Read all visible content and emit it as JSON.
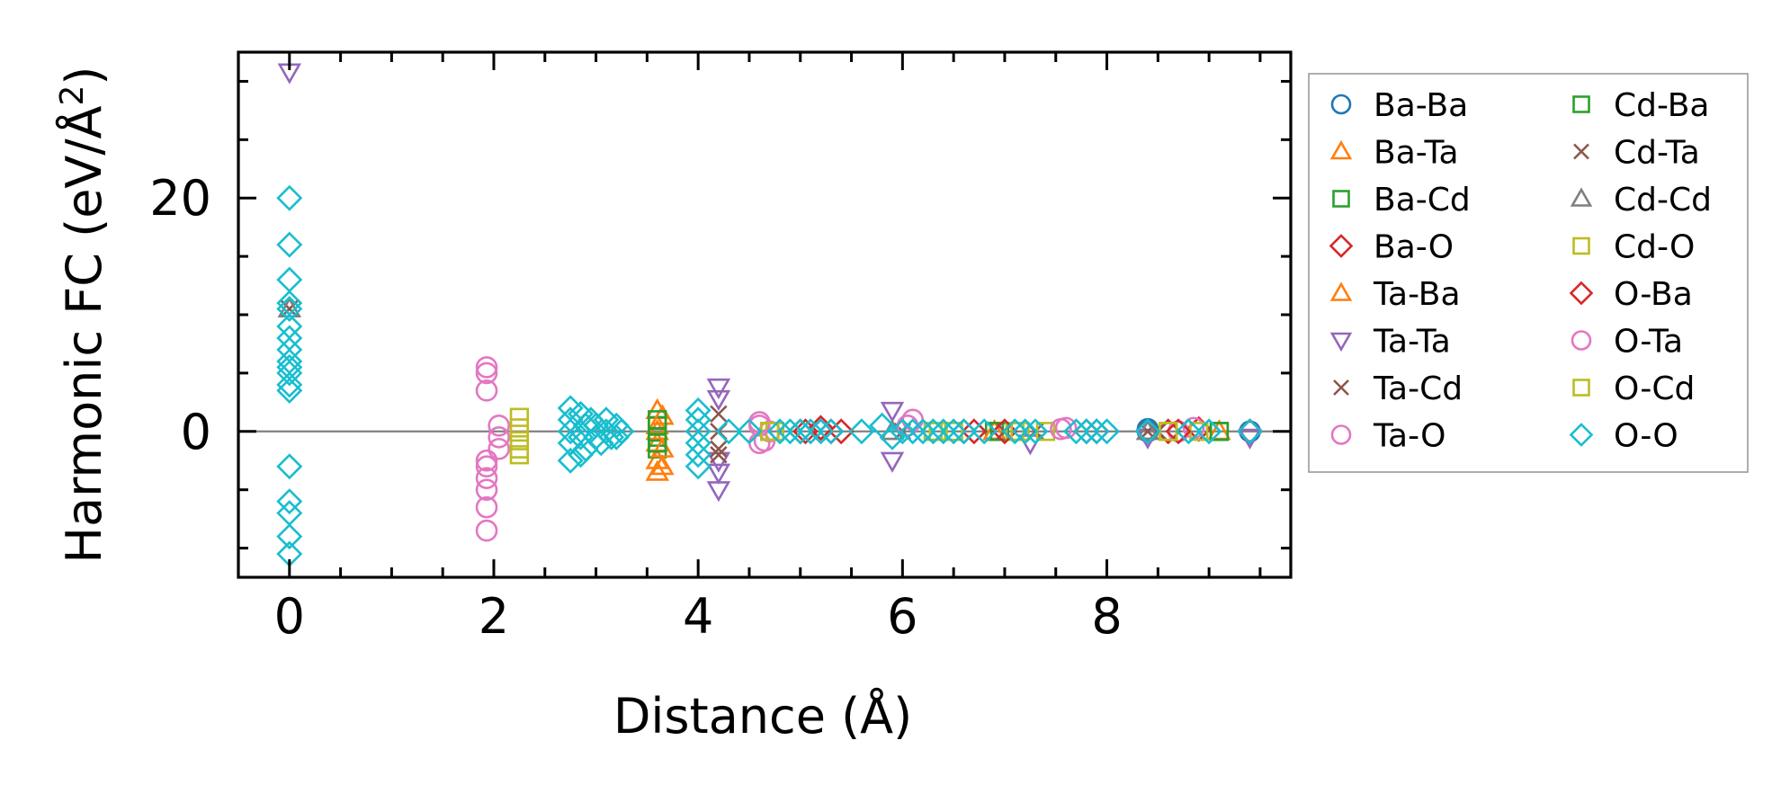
{
  "chart_data": {
    "type": "scatter",
    "title": "",
    "xlabel": "Distance (Å)",
    "ylabel_main": "Harmonic FC (eV/Å",
    "ylabel_sup": "2",
    "ylabel_close": ")",
    "xlim": [
      -0.5,
      9.8
    ],
    "ylim": [
      -12.5,
      32.5
    ],
    "xticks": [
      0,
      2,
      4,
      6,
      8
    ],
    "xtick_labels": [
      "0",
      "2",
      "4",
      "6",
      "8"
    ],
    "yticks": [
      0,
      20
    ],
    "ytick_labels": [
      "0",
      "20"
    ],
    "x_minor_step": 0.5,
    "y_minor_step": 5,
    "zero_line": true,
    "legend_position": "outside-right",
    "legend_columns": 2,
    "series": [
      {
        "name": "Ba-Ba",
        "marker": "circle",
        "color": "#1f77b4",
        "x": [
          8.4,
          8.4,
          9.4
        ],
        "y": [
          0,
          0.2,
          0
        ]
      },
      {
        "name": "Ba-Ta",
        "marker": "triangle-up",
        "color": "#ff7f0e",
        "x": [
          3.6,
          3.6,
          3.6,
          3.6,
          3.6,
          3.6,
          6.9,
          9.1
        ],
        "y": [
          -3.5,
          -2.5,
          0.5,
          1.8,
          -1,
          0,
          0,
          0
        ]
      },
      {
        "name": "Ba-Cd",
        "marker": "square",
        "color": "#2ca02c",
        "x": [
          3.6,
          3.6,
          3.6,
          6.9,
          9.1
        ],
        "y": [
          -1.5,
          0.5,
          -0.5,
          0,
          0
        ]
      },
      {
        "name": "Ba-O",
        "marker": "diamond",
        "color": "#d62728",
        "x": [
          5.0,
          5.2,
          5.4,
          6.7,
          7.8,
          8.6,
          8.9,
          9.4
        ],
        "y": [
          0,
          0.3,
          0,
          0,
          0,
          0,
          0.2,
          0
        ]
      },
      {
        "name": "Ta-Ba",
        "marker": "triangle-up",
        "color": "#ff7f0e",
        "x": [
          3.65,
          3.65,
          3.65,
          6.9
        ],
        "y": [
          -3,
          1.3,
          -1.5,
          0
        ]
      },
      {
        "name": "Ta-Ta",
        "marker": "triangle-down",
        "color": "#9467bd",
        "x": [
          0,
          4.2,
          4.2,
          4.2,
          4.2,
          4.2,
          5.9,
          5.9,
          7.25,
          8.4,
          9.4
        ],
        "y": [
          30.8,
          3.8,
          2.8,
          -3.5,
          -5,
          -2.5,
          1.8,
          -2.5,
          -1,
          -0.5,
          -0.5
        ]
      },
      {
        "name": "Ta-Cd",
        "marker": "cross",
        "color": "#8c564b",
        "x": [
          0,
          4.2,
          4.2,
          4.2,
          6.0,
          7.3,
          8.5
        ],
        "y": [
          10.5,
          -2,
          1.5,
          0,
          0,
          0,
          0
        ]
      },
      {
        "name": "Ta-O",
        "marker": "circle",
        "color": "#e377c2",
        "x": [
          1.93,
          1.93,
          1.93,
          1.93,
          1.93,
          1.93,
          1.93,
          1.93,
          1.93,
          2.05,
          2.05,
          2.05,
          4.6,
          4.7,
          4.6,
          6.1,
          7.6,
          8.7,
          8.85
        ],
        "y": [
          5.5,
          5,
          3.5,
          -2.5,
          -3,
          -4,
          -5,
          -6.5,
          -8.5,
          0.5,
          -0.5,
          -1.5,
          0.8,
          0,
          -1,
          1,
          0.3,
          0,
          0.3
        ]
      },
      {
        "name": "Cd-Ba",
        "marker": "square",
        "color": "#2ca02c",
        "x": [
          3.6,
          3.6,
          6.95,
          9.1
        ],
        "y": [
          1,
          -1,
          0,
          0
        ]
      },
      {
        "name": "Cd-Ta",
        "marker": "cross",
        "color": "#8c564b",
        "x": [
          4.2,
          7.0,
          8.4
        ],
        "y": [
          -1.5,
          0,
          0
        ]
      },
      {
        "name": "Cd-Cd",
        "marker": "triangle-up",
        "color": "#7f7f7f",
        "x": [
          0,
          5.9,
          8.4
        ],
        "y": [
          10.5,
          0,
          0
        ]
      },
      {
        "name": "Cd-O",
        "marker": "square",
        "color": "#bcbd22",
        "x": [
          2.25,
          2.25,
          2.25,
          2.25,
          4.7,
          4.75,
          6.3,
          6.5,
          7.1,
          7.4,
          8.6,
          8.9
        ],
        "y": [
          1.2,
          0.3,
          -0.8,
          -2,
          0,
          0,
          0,
          0,
          0,
          0,
          0,
          0
        ]
      },
      {
        "name": "O-Ba",
        "marker": "diamond",
        "color": "#d62728",
        "x": [
          5.05,
          5.3,
          6.6,
          7.0,
          7.9,
          8.7,
          9.4
        ],
        "y": [
          0,
          0,
          0,
          0,
          0,
          0,
          0
        ]
      },
      {
        "name": "O-Ta",
        "marker": "circle",
        "color": "#e377c2",
        "x": [
          4.6,
          4.65,
          6.05,
          7.55
        ],
        "y": [
          0.5,
          -0.8,
          0.5,
          0.2
        ]
      },
      {
        "name": "O-Cd",
        "marker": "square",
        "color": "#bcbd22",
        "x": [
          2.25,
          4.7,
          6.35,
          7.15,
          8.6
        ],
        "y": [
          -1.5,
          0,
          0,
          0,
          0
        ]
      },
      {
        "name": "O-O",
        "marker": "diamond",
        "color": "#17becf",
        "x": [
          0,
          0,
          0,
          0,
          0,
          0,
          0,
          0,
          0,
          0,
          0,
          0,
          0,
          0,
          0,
          0,
          0,
          0,
          2.75,
          2.75,
          2.75,
          2.75,
          2.75,
          2.85,
          2.85,
          2.85,
          2.9,
          2.9,
          2.95,
          3.0,
          3.0,
          3.05,
          3.1,
          3.1,
          3.15,
          3.2,
          3.2,
          3.25,
          4.0,
          4.0,
          4.0,
          4.0,
          4.0,
          4.0,
          4.3,
          4.5,
          4.8,
          4.9,
          5.0,
          5.1,
          5.2,
          5.3,
          5.6,
          5.8,
          5.9,
          6.0,
          6.1,
          6.2,
          6.3,
          6.4,
          6.5,
          6.6,
          6.8,
          7.1,
          7.2,
          7.3,
          7.7,
          7.8,
          7.9,
          8.0,
          8.4,
          8.8,
          9.0,
          9.4
        ],
        "y": [
          20,
          16,
          13,
          11,
          10.5,
          9,
          8,
          7,
          6,
          5.5,
          5,
          4,
          3.5,
          -3,
          -6,
          -7,
          -9,
          -10.5,
          2,
          1,
          0,
          -1,
          -2.5,
          1.5,
          -0.5,
          -2,
          0.5,
          -1.5,
          1,
          -0.5,
          0.5,
          -1,
          0,
          1,
          -0.5,
          0.5,
          -0.5,
          0,
          1.8,
          1,
          0,
          -1,
          -2,
          -3,
          0,
          0,
          0,
          0,
          0,
          0,
          0,
          0,
          0,
          0.5,
          -0.5,
          0,
          0,
          0,
          0,
          0,
          0,
          0,
          0,
          0,
          0,
          0,
          0,
          0,
          0,
          0,
          0,
          0,
          0,
          0
        ]
      }
    ]
  }
}
